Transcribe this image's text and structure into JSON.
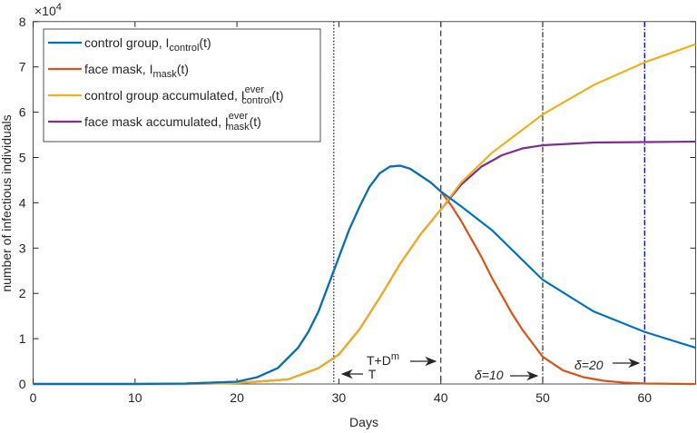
{
  "chart_data": {
    "type": "line",
    "xlabel": "Days",
    "ylabel": "number of infectious individuals",
    "y_exponent_label": "×10",
    "y_exponent": "4",
    "xlim": [
      0,
      65
    ],
    "ylim": [
      0,
      8
    ],
    "xticks": [
      "0",
      "10",
      "20",
      "30",
      "40",
      "50",
      "60"
    ],
    "yticks": [
      "0",
      "1",
      "2",
      "3",
      "4",
      "5",
      "6",
      "7",
      "8"
    ],
    "grid": false,
    "legend_placement": "top-left",
    "series": [
      {
        "name": "control group, I",
        "sub": "control",
        "sup": "",
        "tail": "(t)",
        "color": "#0072BD",
        "x": [
          0,
          10,
          15,
          20,
          22,
          24,
          26,
          27,
          28,
          29,
          30,
          31,
          32,
          33,
          34,
          35,
          36,
          37,
          38,
          39,
          40,
          42,
          45,
          50,
          55,
          60,
          65
        ],
        "y": [
          0,
          0,
          0.01,
          0.05,
          0.15,
          0.35,
          0.8,
          1.15,
          1.6,
          2.2,
          2.8,
          3.4,
          3.9,
          4.35,
          4.65,
          4.8,
          4.82,
          4.75,
          4.6,
          4.45,
          4.25,
          3.92,
          3.4,
          2.3,
          1.6,
          1.15,
          0.8
        ]
      },
      {
        "name": "face mask, I",
        "sub": "mask",
        "sup": "",
        "tail": "(t)",
        "color": "#D95319",
        "x": [
          0,
          10,
          15,
          20,
          22,
          24,
          26,
          27,
          28,
          29,
          30,
          31,
          32,
          33,
          34,
          35,
          36,
          37,
          38,
          39,
          40,
          41,
          42,
          43,
          44,
          45,
          46,
          47,
          48,
          49,
          50,
          52,
          54,
          56,
          58,
          60,
          65
        ],
        "y": [
          0,
          0,
          0.01,
          0.05,
          0.15,
          0.35,
          0.8,
          1.15,
          1.6,
          2.2,
          2.8,
          3.4,
          3.9,
          4.35,
          4.65,
          4.8,
          4.82,
          4.75,
          4.6,
          4.45,
          4.25,
          3.95,
          3.6,
          3.2,
          2.8,
          2.35,
          1.95,
          1.55,
          1.2,
          0.9,
          0.6,
          0.3,
          0.15,
          0.07,
          0.03,
          0.01,
          0
        ]
      },
      {
        "name": "control group accumulated, I",
        "sub": "control",
        "sup": "ever",
        "tail": "(t)",
        "color": "#EDB120",
        "x": [
          0,
          15,
          20,
          25,
          28,
          30,
          32,
          34,
          36,
          38,
          40,
          42,
          45,
          50,
          55,
          60,
          65
        ],
        "y": [
          0,
          0,
          0.02,
          0.1,
          0.35,
          0.65,
          1.2,
          1.9,
          2.65,
          3.3,
          3.85,
          4.45,
          5.1,
          5.95,
          6.6,
          7.1,
          7.5
        ]
      },
      {
        "name": "face mask accumulated, I",
        "sub": "mask",
        "sup": "ever",
        "tail": "(t)",
        "color": "#7E2F8E",
        "x": [
          0,
          15,
          20,
          25,
          28,
          30,
          32,
          34,
          36,
          38,
          40,
          42,
          44,
          46,
          48,
          50,
          55,
          60,
          65
        ],
        "y": [
          0,
          0,
          0.02,
          0.1,
          0.35,
          0.65,
          1.2,
          1.9,
          2.65,
          3.3,
          3.85,
          4.4,
          4.8,
          5.05,
          5.2,
          5.27,
          5.33,
          5.34,
          5.35
        ]
      }
    ],
    "vlines": [
      {
        "x": 29.5,
        "style": "dotted",
        "color": "#262626"
      },
      {
        "x": 40,
        "style": "dashed",
        "color": "#404040"
      },
      {
        "x": 50,
        "style": "dashdot",
        "color": "#404040"
      },
      {
        "x": 60,
        "style": "dashdot",
        "color": "#0000FF"
      }
    ],
    "annotations": [
      {
        "text": "T",
        "arrow": "left"
      },
      {
        "text": "T+D",
        "sup": "m",
        "arrow": "right"
      },
      {
        "text": "δ=10",
        "arrow": "right"
      },
      {
        "text": "δ=20",
        "arrow": "right"
      }
    ]
  }
}
